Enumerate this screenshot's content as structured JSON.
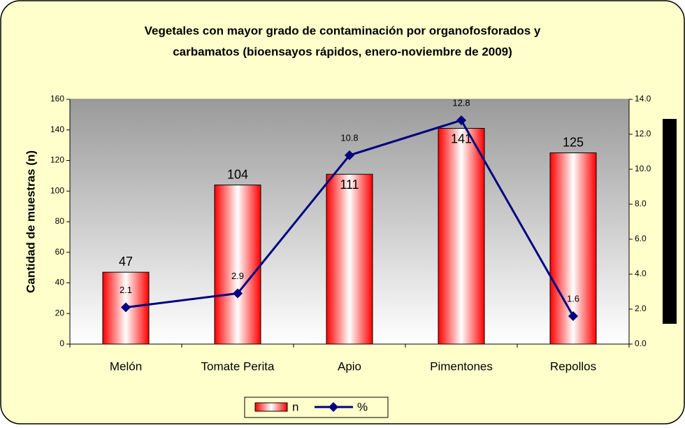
{
  "chart_data": {
    "type": "bar",
    "title": [
      "Vegetales con mayor grado de contaminación por organofosforados y",
      "carbamatos (bioensayos rápidos, enero-noviembre de 2009)"
    ],
    "y_label": "Cantidad de muestras (n)",
    "categories": [
      "Melón",
      "Tomate Perita",
      "Apio",
      "Pimentones",
      "Repollos"
    ],
    "series": [
      {
        "name": "n",
        "type": "bar",
        "color": "#ff0000",
        "values": [
          47,
          104,
          111,
          141,
          125
        ]
      },
      {
        "name": "%",
        "type": "line",
        "axis": "y2",
        "color": "#000080",
        "values": [
          2.1,
          2.9,
          10.8,
          12.8,
          1.6
        ]
      }
    ],
    "ylim": [
      0,
      160
    ],
    "yticks": [
      0,
      20,
      40,
      60,
      80,
      100,
      120,
      140,
      160
    ],
    "y2lim": [
      0,
      14
    ],
    "y2ticks": [
      {
        "value": 0,
        "label": "0.0"
      },
      {
        "value": 2,
        "label": "2.0"
      },
      {
        "value": 4,
        "label": "4.0"
      },
      {
        "value": 6,
        "label": "6.0"
      },
      {
        "value": 8,
        "label": "8.0"
      },
      {
        "value": 10,
        "label": "10.0"
      },
      {
        "value": 12,
        "label": "12.0"
      },
      {
        "value": 14,
        "label": "14.0"
      }
    ],
    "legend": "bottom"
  }
}
